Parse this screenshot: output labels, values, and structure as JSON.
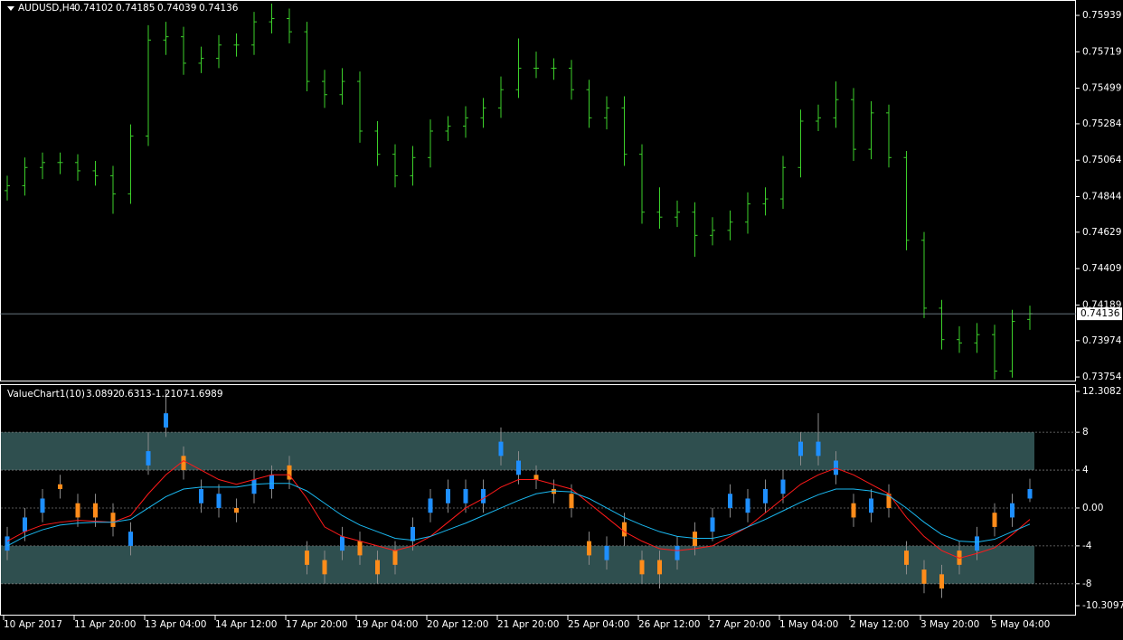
{
  "chart_data": [
    {
      "type": "ohlc",
      "title": "AUDUSD,H4",
      "color": "#3ccf2a",
      "price_line": true,
      "open": [
        0.7488,
        0.7491,
        0.7502,
        0.7505,
        0.7505,
        0.75,
        0.7497,
        0.7486,
        0.7521,
        0.7579,
        0.7581,
        0.7565,
        0.7568,
        0.7576,
        0.7576,
        0.759,
        0.7592,
        0.7584,
        0.7554,
        0.7546,
        0.7554,
        0.7524,
        0.751,
        0.7497,
        0.7508,
        0.7524,
        0.7527,
        0.7532,
        0.7538,
        0.7549,
        0.7562,
        0.7562,
        0.7562,
        0.7549,
        0.7532,
        0.7538,
        0.751,
        0.7475,
        0.7472,
        0.7475,
        0.7461,
        0.7464,
        0.7469,
        0.748,
        0.7483,
        0.7502,
        0.753,
        0.7532,
        0.7543,
        0.7513,
        0.7535,
        0.7508,
        0.7458,
        0.7417,
        0.7398,
        0.7396,
        0.7401,
        0.7379,
        0.74102
      ],
      "high": [
        0.7497,
        0.7508,
        0.7511,
        0.7511,
        0.751,
        0.7506,
        0.7503,
        0.7528,
        0.7588,
        0.759,
        0.7587,
        0.7575,
        0.7582,
        0.7583,
        0.7596,
        0.7601,
        0.7598,
        0.759,
        0.7561,
        0.7562,
        0.756,
        0.753,
        0.7516,
        0.7515,
        0.7531,
        0.7533,
        0.7539,
        0.7544,
        0.7557,
        0.758,
        0.7572,
        0.7568,
        0.7567,
        0.7555,
        0.7545,
        0.7545,
        0.7516,
        0.749,
        0.7482,
        0.7481,
        0.7472,
        0.7476,
        0.7487,
        0.749,
        0.7509,
        0.7537,
        0.754,
        0.7554,
        0.755,
        0.7542,
        0.754,
        0.7512,
        0.7463,
        0.7422,
        0.7406,
        0.7408,
        0.7407,
        0.7416,
        0.74185
      ],
      "low": [
        0.7482,
        0.7485,
        0.7495,
        0.7498,
        0.7494,
        0.7491,
        0.7474,
        0.748,
        0.7515,
        0.757,
        0.7558,
        0.7559,
        0.7562,
        0.7569,
        0.757,
        0.7583,
        0.7577,
        0.7548,
        0.7538,
        0.754,
        0.7517,
        0.7503,
        0.749,
        0.7491,
        0.7502,
        0.7518,
        0.752,
        0.7526,
        0.7532,
        0.7544,
        0.7556,
        0.7555,
        0.7543,
        0.7526,
        0.7525,
        0.7503,
        0.7468,
        0.7465,
        0.7466,
        0.7448,
        0.7455,
        0.7458,
        0.7462,
        0.7473,
        0.7477,
        0.7496,
        0.7524,
        0.7526,
        0.7506,
        0.7507,
        0.7502,
        0.7452,
        0.7411,
        0.7392,
        0.739,
        0.739,
        0.7374,
        0.7375,
        0.74039
      ],
      "close": [
        0.7491,
        0.7502,
        0.7505,
        0.7505,
        0.75,
        0.7497,
        0.7486,
        0.7521,
        0.7579,
        0.7581,
        0.7565,
        0.7568,
        0.7576,
        0.7576,
        0.759,
        0.7592,
        0.7584,
        0.7554,
        0.7546,
        0.7554,
        0.7524,
        0.751,
        0.7497,
        0.7508,
        0.7524,
        0.7527,
        0.7532,
        0.7538,
        0.7549,
        0.7562,
        0.7562,
        0.7562,
        0.7549,
        0.7532,
        0.7538,
        0.751,
        0.7475,
        0.7472,
        0.7475,
        0.7461,
        0.7464,
        0.7469,
        0.748,
        0.7483,
        0.7502,
        0.753,
        0.7532,
        0.7543,
        0.7513,
        0.7535,
        0.7508,
        0.7458,
        0.7417,
        0.7398,
        0.7396,
        0.7401,
        0.7379,
        0.7409,
        0.74136
      ],
      "ylim": [
        0.73727,
        0.76032
      ],
      "yticks": [
        0.75939,
        0.75719,
        0.75499,
        0.75284,
        0.75064,
        0.74844,
        0.74629,
        0.74409,
        0.74189,
        0.73974,
        0.73754
      ]
    },
    {
      "type": "candlestick",
      "title": "ValueChart1(10)",
      "up_color": "#1e8fff",
      "down_color": "#ff8c1a",
      "categories": [
        "10 Apr 2017",
        null,
        null,
        null,
        "11 Apr 20:00",
        null,
        null,
        null,
        "13 Apr 04:00",
        null,
        null,
        null,
        "14 Apr 12:00",
        null,
        null,
        null,
        "17 Apr 20:00",
        null,
        null,
        null,
        "19 Apr 04:00",
        null,
        null,
        null,
        "20 Apr 12:00",
        null,
        null,
        null,
        "21 Apr 20:00",
        null,
        null,
        null,
        "25 Apr 04:00",
        null,
        null,
        null,
        "26 Apr 12:00",
        null,
        null,
        null,
        "27 Apr 20:00",
        null,
        null,
        null,
        "1 May 04:00",
        null,
        null,
        null,
        "2 May 12:00",
        null,
        null,
        null,
        "3 May 20:00",
        null,
        null,
        null,
        "5 May 04:00",
        null,
        null
      ],
      "open": [
        -4.5,
        -2.5,
        -0.5,
        2.5,
        0.5,
        0.5,
        -0.5,
        -4,
        4.5,
        8.5,
        5.5,
        0.5,
        0,
        0,
        1.5,
        2,
        4.5,
        -4.5,
        -5.5,
        -4.5,
        -3.5,
        -5.5,
        -4.5,
        -3.5,
        -0.5,
        0.5,
        0.5,
        0.5,
        5.5,
        3.5,
        3.5,
        2,
        1.5,
        -3.5,
        -5.5,
        -1.5,
        -5.5,
        -5.5,
        -5.5,
        -2.5,
        -2.5,
        0,
        -0.5,
        0.5,
        1.5,
        5.5,
        5.5,
        3.5,
        0.5,
        -0.5,
        1.5,
        -4.5,
        -6.5,
        -7,
        -4.5,
        -4.5,
        -0.5,
        -1,
        1
      ],
      "high": [
        -2,
        0,
        2,
        3.5,
        1.5,
        1.5,
        0.5,
        -1.5,
        8,
        12.3,
        6.5,
        3,
        2.5,
        1,
        4,
        4.5,
        5.5,
        -3.5,
        -4.5,
        -2,
        -2.5,
        -4.5,
        -3.5,
        -1,
        2,
        3,
        3,
        3,
        8.5,
        6,
        4.5,
        3,
        2.5,
        -2.5,
        -3,
        -0.5,
        -4.5,
        -4.5,
        -3,
        -1.5,
        0,
        2.5,
        2,
        3,
        4,
        8,
        10,
        6,
        1.5,
        2,
        2.5,
        -3.5,
        -5.5,
        -6,
        -3.5,
        -2,
        0.5,
        1.5,
        3.0892
      ],
      "low": [
        -5.5,
        -3.5,
        -1.5,
        1,
        -2,
        -2,
        -3,
        -5,
        3.5,
        7.5,
        3,
        -0.5,
        -1,
        -1.5,
        0.5,
        1,
        2,
        -7,
        -8,
        -5.5,
        -6,
        -8,
        -7,
        -4.5,
        -1.5,
        -0.5,
        -0.5,
        -0.5,
        4.5,
        2.5,
        2,
        0.5,
        -1,
        -6,
        -6.5,
        -4,
        -8,
        -8.5,
        -6.5,
        -5,
        -3.5,
        -1,
        -1.5,
        -0.5,
        0.5,
        4.5,
        4.5,
        2.5,
        -2,
        -1.5,
        -1,
        -7,
        -9,
        -9.5,
        -7,
        -5.5,
        -3,
        -2,
        0.6313
      ],
      "close": [
        -3,
        -1,
        1,
        2,
        -1,
        -1,
        -2,
        -2.5,
        6,
        10,
        4,
        2,
        1.5,
        -0.5,
        3,
        3.5,
        3,
        -6,
        -7,
        -3,
        -5,
        -7,
        -6,
        -2,
        1,
        2,
        2,
        2,
        7,
        5,
        3,
        1.5,
        0,
        -5,
        -4,
        -3,
        -7,
        -7,
        -4,
        -4,
        -1,
        1.5,
        1,
        2,
        3,
        7,
        7,
        5,
        -1,
        1,
        0,
        -6,
        -8,
        -8.5,
        -6,
        -3,
        -2,
        0.5,
        2
      ],
      "lines": [
        {
          "color": "#ff1a1a",
          "values": [
            -3.5,
            -2.5,
            -1.8,
            -1.5,
            -1.3,
            -1.4,
            -1.5,
            -0.8,
            1.5,
            3.5,
            5,
            4,
            3,
            2.5,
            3,
            3.5,
            3.5,
            1,
            -2,
            -3,
            -3.5,
            -4,
            -4.5,
            -4,
            -3,
            -1.5,
            0,
            1,
            2.2,
            3,
            3,
            2.5,
            2,
            0.5,
            -1,
            -2.5,
            -3.5,
            -4.3,
            -4.5,
            -4.3,
            -4,
            -3,
            -2,
            -0.5,
            1,
            2.5,
            3.5,
            4.2,
            3.5,
            2.5,
            1.5,
            -1,
            -3,
            -4.5,
            -5.3,
            -4.8,
            -4.2,
            -2.8,
            -1.2107
          ]
        },
        {
          "color": "#1ab8f0",
          "values": [
            -4,
            -3,
            -2.3,
            -1.8,
            -1.6,
            -1.5,
            -1.5,
            -1.2,
            0,
            1.2,
            2,
            2.2,
            2.2,
            2.2,
            2.5,
            2.6,
            2.6,
            1.8,
            0.5,
            -0.8,
            -1.8,
            -2.5,
            -3.2,
            -3.4,
            -3,
            -2.3,
            -1.6,
            -0.8,
            0,
            0.8,
            1.5,
            1.8,
            1.7,
            1,
            0,
            -1,
            -1.8,
            -2.5,
            -3,
            -3.2,
            -3.2,
            -2.8,
            -2,
            -1.2,
            -0.3,
            0.6,
            1.4,
            2,
            2,
            1.8,
            1.3,
            0,
            -1.5,
            -2.8,
            -3.5,
            -3.6,
            -3.3,
            -2.5,
            -1.6989
          ]
        }
      ],
      "bands": [
        [
          4,
          8
        ],
        [
          -8,
          -4
        ]
      ],
      "band_color": "#2f4f4f",
      "ylim": [
        -10.3097,
        12.3082
      ],
      "yticks": [
        12.3082,
        8,
        4,
        {
          "value": 0,
          "label": "0.00"
        },
        -4,
        -8,
        -10.3097
      ]
    }
  ]
}
